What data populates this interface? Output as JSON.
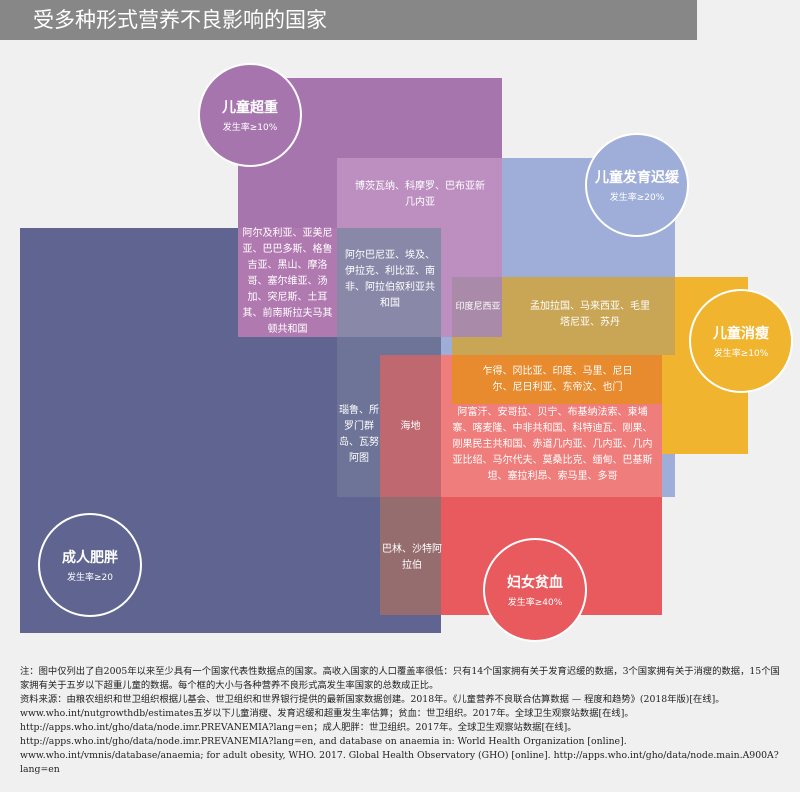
{
  "title": "受多种形式营养不良影响的国家",
  "colors": {
    "adult_obesity": "#5f6590",
    "child_overweight": "#a775ae",
    "child_stunting": "#9eaed8",
    "child_wasting": "#f0b42e",
    "women_anaemia": "#e85a5e"
  },
  "categories": {
    "child_overweight": {
      "name": "儿童超重",
      "rate": "发生率≥10%"
    },
    "child_stunting": {
      "name": "儿童发育迟缓",
      "rate": "发生率≥20%"
    },
    "child_wasting": {
      "name": "儿童消瘦",
      "rate": "发生率≥10%"
    },
    "adult_obesity": {
      "name": "成人肥胖",
      "rate": "发生率≥20"
    },
    "women_anaemia": {
      "name": "妇女贫血",
      "rate": "发生率≥40%"
    }
  },
  "regions": {
    "overweight_stunting": "博茨瓦纳、科摩罗、巴布亚新几内亚",
    "overweight_obesity": "阿尔及利亚、亚美尼亚、巴巴多斯、格鲁吉亚、黑山、摩洛哥、塞尔维亚、汤加、突尼斯、土耳其、前南斯拉夫马其顿共和国",
    "overweight_obesity_stunting": "阿尔巴尼亚、埃及、伊拉克、利比亚、南非、阿拉伯叙利亚共和国",
    "overweight_stunting_wasting": "印度尼西亚",
    "stunting_wasting": "孟加拉国、马来西亚、毛里塔尼亚、苏丹",
    "stunting_wasting_anaemia": "乍得、冈比亚、印度、马里、尼日尔、尼日利亚、东帝汶、也门",
    "stunting_anaemia": "阿富汗、安哥拉、贝宁、布基纳法索、柬埔寨、喀麦隆、中非共和国、科特迪瓦、刚果、刚果民主共和国、赤道几内亚、几内亚、几内亚比绍、马尔代夫、莫桑比克、缅甸、巴基斯坦、塞拉利昂、索马里、多哥",
    "obesity_stunting": "瑙鲁、所罗门群岛、瓦努阿图",
    "obesity_stunting_anaemia": "海地",
    "obesity_anaemia": "巴林、沙特阿拉伯"
  },
  "footer": {
    "note": "注：图中仅列出了自2005年以来至少具有一个国家代表性数据点的国家。高收入国家的人口覆盖率很低：只有14个国家拥有关于发育迟缓的数据，3个国家拥有关于消瘦的数据，15个国家拥有关于五岁以下超重儿童的数据。每个框的大小与各种营养不良形式高发生率国家的总数成正比。",
    "source": "资料来源：由粮农组织和世卫组织根据儿基会、世卫组织和世界银行提供的最新国家数据创建。2018年。《儿童营养不良联合估算数据 — 程度和趋势》(2018年版)[在线]。www.who.int/nutgrowthdb/estimates五岁以下儿童消瘦、发育迟缓和超重发生率估算；贫血：世卫组织。2017年。全球卫生观察站数据[在线]。http://apps.who.int/gho/data/node.imr.PREVANEMIA?lang=en；成人肥胖：世卫组织。2017年。全球卫生观察站数据[在线]。http://apps.who.int/gho/data/node.imr.PREVANEMIA?lang=en, and database on anaemia in: World Health Organization [online]. www.who.int/vmnis/database/anaemia; for adult obesity, WHO. 2017. Global Health Observatory (GHO) [online]. http://apps.who.int/gho/data/node.main.A900A?lang=en"
  }
}
